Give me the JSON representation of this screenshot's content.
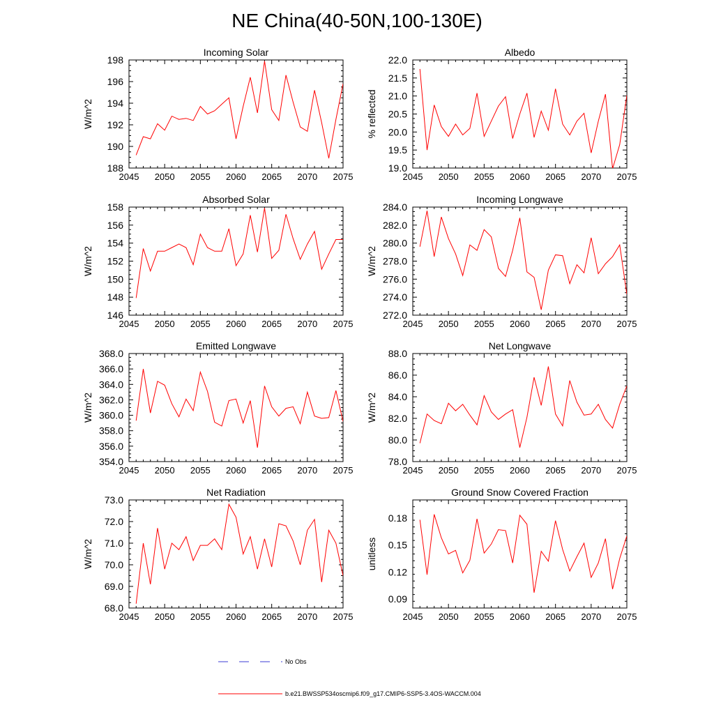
{
  "figure_title": "NE China(40-50N,100-130E)",
  "colors": {
    "model_line": "#ff0000",
    "obs_line": "#3b3bd6",
    "axis": "#000000"
  },
  "legend": {
    "obs_label": "No Obs",
    "model_label": "b.e21.BWSSP534oscmip6.f09_g17.CMIP6-SSP5-3.4OS-WACCM.004"
  },
  "chart_data": [
    {
      "type": "line",
      "title": "Incoming Solar",
      "ylabel": "W/m^2",
      "xlim": [
        2045,
        2075
      ],
      "ylim": [
        188,
        198
      ],
      "xticks": [
        2045,
        2050,
        2055,
        2060,
        2065,
        2070,
        2075
      ],
      "xtick_labels": [
        "2045",
        "2050",
        "2055",
        "2060",
        "2065",
        "2070",
        "2075"
      ],
      "yticks": [
        188,
        190,
        192,
        194,
        196,
        198
      ],
      "ytick_labels": [
        "188",
        "190",
        "192",
        "194",
        "196",
        "198"
      ],
      "x": [
        2046,
        2047,
        2048,
        2049,
        2050,
        2051,
        2052,
        2053,
        2054,
        2055,
        2056,
        2057,
        2058,
        2059,
        2060,
        2061,
        2062,
        2063,
        2064,
        2065,
        2066,
        2067,
        2068,
        2069,
        2070,
        2071,
        2072,
        2073,
        2074,
        2075
      ],
      "series": [
        {
          "name": "b.e21.BWSSP534oscmip6.f09_g17.CMIP6-SSP5-3.4OS-WACCM.004",
          "values": [
            189.2,
            190.9,
            190.7,
            192.1,
            191.5,
            192.8,
            192.5,
            192.6,
            192.4,
            193.7,
            193.0,
            193.3,
            193.9,
            194.5,
            190.7,
            193.7,
            196.4,
            193.1,
            197.9,
            193.4,
            192.4,
            196.6,
            194.1,
            191.8,
            191.4,
            195.2,
            192.2,
            188.9,
            192.5,
            195.8
          ]
        }
      ]
    },
    {
      "type": "line",
      "title": "Albedo",
      "ylabel": "% reflected",
      "xlim": [
        2045,
        2075
      ],
      "ylim": [
        19.0,
        22.0
      ],
      "xticks": [
        2045,
        2050,
        2055,
        2060,
        2065,
        2070,
        2075
      ],
      "xtick_labels": [
        "2045",
        "2050",
        "2055",
        "2060",
        "2065",
        "2070",
        "2075"
      ],
      "yticks": [
        19.0,
        19.5,
        20.0,
        20.5,
        21.0,
        21.5,
        22.0
      ],
      "ytick_labels": [
        "19.0",
        "19.5",
        "20.0",
        "20.5",
        "21.0",
        "21.5",
        "22.0"
      ],
      "x": [
        2046,
        2047,
        2048,
        2049,
        2050,
        2051,
        2052,
        2053,
        2054,
        2055,
        2056,
        2057,
        2058,
        2059,
        2060,
        2061,
        2062,
        2063,
        2064,
        2065,
        2066,
        2067,
        2068,
        2069,
        2070,
        2071,
        2072,
        2073,
        2074,
        2075
      ],
      "series": [
        {
          "name": "b.e21.BWSSP534oscmip6.f09_g17.CMIP6-SSP5-3.4OS-WACCM.004",
          "values": [
            21.75,
            19.5,
            20.75,
            20.15,
            19.88,
            20.22,
            19.92,
            20.1,
            21.08,
            19.88,
            20.3,
            20.72,
            20.98,
            19.82,
            20.5,
            21.08,
            19.85,
            20.58,
            20.05,
            21.2,
            20.22,
            19.92,
            20.3,
            20.52,
            19.42,
            20.3,
            21.05,
            18.98,
            19.65,
            21.02
          ]
        }
      ]
    },
    {
      "type": "line",
      "title": "Absorbed Solar",
      "ylabel": "W/m^2",
      "xlim": [
        2045,
        2075
      ],
      "ylim": [
        146,
        158
      ],
      "xticks": [
        2045,
        2050,
        2055,
        2060,
        2065,
        2070,
        2075
      ],
      "xtick_labels": [
        "2045",
        "2050",
        "2055",
        "2060",
        "2065",
        "2070",
        "2075"
      ],
      "yticks": [
        146,
        148,
        150,
        152,
        154,
        156,
        158
      ],
      "ytick_labels": [
        "146",
        "148",
        "150",
        "152",
        "154",
        "156",
        "158"
      ],
      "x": [
        2046,
        2047,
        2048,
        2049,
        2050,
        2051,
        2052,
        2053,
        2054,
        2055,
        2056,
        2057,
        2058,
        2059,
        2060,
        2061,
        2062,
        2063,
        2064,
        2065,
        2066,
        2067,
        2068,
        2069,
        2070,
        2071,
        2072,
        2073,
        2074,
        2075
      ],
      "series": [
        {
          "name": "b.e21.BWSSP534oscmip6.f09_g17.CMIP6-SSP5-3.4OS-WACCM.004",
          "values": [
            147.9,
            153.4,
            150.9,
            153.1,
            153.1,
            153.5,
            153.9,
            153.5,
            151.6,
            155.0,
            153.5,
            153.1,
            153.1,
            155.6,
            151.5,
            152.8,
            157.1,
            153.0,
            157.9,
            152.3,
            153.2,
            157.2,
            154.5,
            152.2,
            153.9,
            155.3,
            151.1,
            152.8,
            154.4,
            154.4
          ]
        }
      ]
    },
    {
      "type": "line",
      "title": "Incoming Longwave",
      "ylabel": "W/m^2",
      "xlim": [
        2045,
        2075
      ],
      "ylim": [
        272.0,
        284.0
      ],
      "xticks": [
        2045,
        2050,
        2055,
        2060,
        2065,
        2070,
        2075
      ],
      "xtick_labels": [
        "2045",
        "2050",
        "2055",
        "2060",
        "2065",
        "2070",
        "2075"
      ],
      "yticks": [
        272,
        274,
        276,
        278,
        280,
        282,
        284
      ],
      "ytick_labels": [
        "272.0",
        "274.0",
        "276.0",
        "278.0",
        "280.0",
        "282.0",
        "284.0"
      ],
      "x": [
        2046,
        2047,
        2048,
        2049,
        2050,
        2051,
        2052,
        2053,
        2054,
        2055,
        2056,
        2057,
        2058,
        2059,
        2060,
        2061,
        2062,
        2063,
        2064,
        2065,
        2066,
        2067,
        2068,
        2069,
        2070,
        2071,
        2072,
        2073,
        2074,
        2075
      ],
      "series": [
        {
          "name": "b.e21.BWSSP534oscmip6.f09_g17.CMIP6-SSP5-3.4OS-WACCM.004",
          "values": [
            279.6,
            283.6,
            278.5,
            282.9,
            280.5,
            278.8,
            276.4,
            279.8,
            279.2,
            281.5,
            280.7,
            277.2,
            276.3,
            279.2,
            282.8,
            276.8,
            276.2,
            272.6,
            277.0,
            278.7,
            278.6,
            275.5,
            277.6,
            276.7,
            280.6,
            276.6,
            277.7,
            278.5,
            279.8,
            274.3
          ]
        }
      ]
    },
    {
      "type": "line",
      "title": "Emitted Longwave",
      "ylabel": "W/m^2",
      "xlim": [
        2045,
        2075
      ],
      "ylim": [
        354.0,
        368.0
      ],
      "xticks": [
        2045,
        2050,
        2055,
        2060,
        2065,
        2070,
        2075
      ],
      "xtick_labels": [
        "2045",
        "2050",
        "2055",
        "2060",
        "2065",
        "2070",
        "2075"
      ],
      "yticks": [
        354,
        356,
        358,
        360,
        362,
        364,
        366,
        368
      ],
      "ytick_labels": [
        "354.0",
        "356.0",
        "358.0",
        "360.0",
        "362.0",
        "364.0",
        "366.0",
        "368.0"
      ],
      "x": [
        2046,
        2047,
        2048,
        2049,
        2050,
        2051,
        2052,
        2053,
        2054,
        2055,
        2056,
        2057,
        2058,
        2059,
        2060,
        2061,
        2062,
        2063,
        2064,
        2065,
        2066,
        2067,
        2068,
        2069,
        2070,
        2071,
        2072,
        2073,
        2074,
        2075
      ],
      "series": [
        {
          "name": "b.e21.BWSSP534oscmip6.f09_g17.CMIP6-SSP5-3.4OS-WACCM.004",
          "values": [
            359.3,
            366.0,
            360.3,
            364.4,
            363.9,
            361.5,
            359.8,
            362.1,
            360.6,
            365.6,
            363.1,
            359.1,
            358.6,
            361.9,
            362.1,
            359.0,
            361.9,
            355.8,
            363.8,
            361.1,
            359.9,
            360.9,
            361.1,
            358.9,
            363.0,
            359.9,
            359.6,
            359.7,
            363.2,
            359.2
          ]
        }
      ]
    },
    {
      "type": "line",
      "title": "Net Longwave",
      "ylabel": "W/m^2",
      "xlim": [
        2045,
        2075
      ],
      "ylim": [
        78.0,
        88.0
      ],
      "xticks": [
        2045,
        2050,
        2055,
        2060,
        2065,
        2070,
        2075
      ],
      "xtick_labels": [
        "2045",
        "2050",
        "2055",
        "2060",
        "2065",
        "2070",
        "2075"
      ],
      "yticks": [
        78,
        80,
        82,
        84,
        86,
        88
      ],
      "ytick_labels": [
        "78.0",
        "80.0",
        "82.0",
        "84.0",
        "86.0",
        "88.0"
      ],
      "x": [
        2046,
        2047,
        2048,
        2049,
        2050,
        2051,
        2052,
        2053,
        2054,
        2055,
        2056,
        2057,
        2058,
        2059,
        2060,
        2061,
        2062,
        2063,
        2064,
        2065,
        2066,
        2067,
        2068,
        2069,
        2070,
        2071,
        2072,
        2073,
        2074,
        2075
      ],
      "series": [
        {
          "name": "b.e21.BWSSP534oscmip6.f09_g17.CMIP6-SSP5-3.4OS-WACCM.004",
          "values": [
            79.7,
            82.4,
            81.8,
            81.5,
            83.4,
            82.7,
            83.3,
            82.3,
            81.4,
            84.1,
            82.6,
            81.9,
            82.4,
            82.8,
            79.3,
            82.1,
            85.8,
            83.2,
            86.8,
            82.4,
            81.3,
            85.5,
            83.5,
            82.3,
            82.4,
            83.3,
            81.9,
            81.1,
            83.3,
            85.0
          ]
        }
      ]
    },
    {
      "type": "line",
      "title": "Net Radiation",
      "ylabel": "W/m^2",
      "xlim": [
        2045,
        2075
      ],
      "ylim": [
        68.0,
        73.0
      ],
      "xticks": [
        2045,
        2050,
        2055,
        2060,
        2065,
        2070,
        2075
      ],
      "xtick_labels": [
        "2045",
        "2050",
        "2055",
        "2060",
        "2065",
        "2070",
        "2075"
      ],
      "yticks": [
        68,
        69,
        70,
        71,
        72,
        73
      ],
      "ytick_labels": [
        "68.0",
        "69.0",
        "70.0",
        "71.0",
        "72.0",
        "73.0"
      ],
      "x": [
        2046,
        2047,
        2048,
        2049,
        2050,
        2051,
        2052,
        2053,
        2054,
        2055,
        2056,
        2057,
        2058,
        2059,
        2060,
        2061,
        2062,
        2063,
        2064,
        2065,
        2066,
        2067,
        2068,
        2069,
        2070,
        2071,
        2072,
        2073,
        2074,
        2075
      ],
      "series": [
        {
          "name": "b.e21.BWSSP534oscmip6.f09_g17.CMIP6-SSP5-3.4OS-WACCM.004",
          "values": [
            68.2,
            71.0,
            69.1,
            71.7,
            69.8,
            71.0,
            70.7,
            71.3,
            70.2,
            70.9,
            70.9,
            71.2,
            70.7,
            72.8,
            72.2,
            70.5,
            71.3,
            69.8,
            71.2,
            69.9,
            71.9,
            71.8,
            71.1,
            70.0,
            71.6,
            72.1,
            69.2,
            71.6,
            71.0,
            69.5
          ]
        }
      ]
    },
    {
      "type": "line",
      "title": "Ground Snow Covered Fraction",
      "ylabel": "unitless",
      "xlim": [
        2045,
        2075
      ],
      "ylim": [
        0.08,
        0.2
      ],
      "xticks": [
        2045,
        2050,
        2055,
        2060,
        2065,
        2070,
        2075
      ],
      "xtick_labels": [
        "2045",
        "2050",
        "2055",
        "2060",
        "2065",
        "2070",
        "2075"
      ],
      "yticks": [
        0.09,
        0.12,
        0.15,
        0.18
      ],
      "ytick_labels": [
        "0.09",
        "0.12",
        "0.15",
        "0.18"
      ],
      "x": [
        2046,
        2047,
        2048,
        2049,
        2050,
        2051,
        2052,
        2053,
        2054,
        2055,
        2056,
        2057,
        2058,
        2059,
        2060,
        2061,
        2062,
        2063,
        2064,
        2065,
        2066,
        2067,
        2068,
        2069,
        2070,
        2071,
        2072,
        2073,
        2074,
        2075
      ],
      "series": [
        {
          "name": "b.e21.BWSSP534oscmip6.f09_g17.CMIP6-SSP5-3.4OS-WACCM.004",
          "values": [
            0.178,
            0.117,
            0.184,
            0.158,
            0.14,
            0.144,
            0.119,
            0.133,
            0.179,
            0.141,
            0.151,
            0.167,
            0.166,
            0.13,
            0.183,
            0.173,
            0.097,
            0.143,
            0.132,
            0.177,
            0.145,
            0.121,
            0.137,
            0.152,
            0.114,
            0.13,
            0.157,
            0.101,
            0.135,
            0.16
          ]
        }
      ]
    }
  ]
}
